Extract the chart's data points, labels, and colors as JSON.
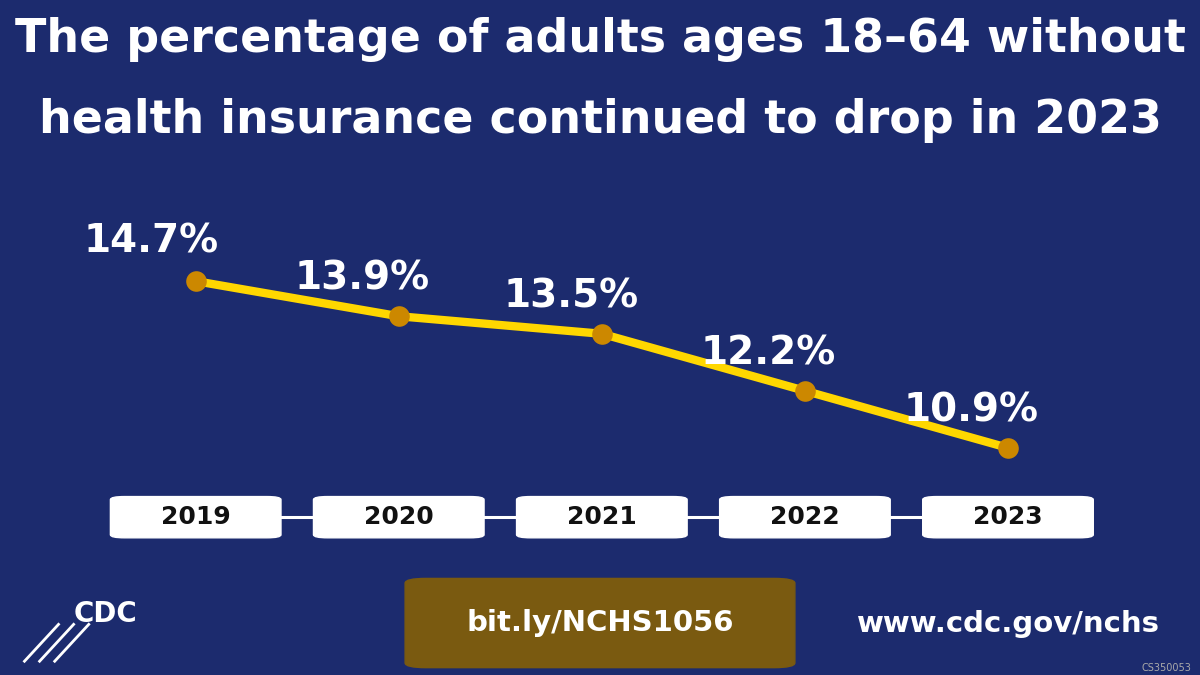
{
  "years": [
    2019,
    2020,
    2021,
    2022,
    2023
  ],
  "values": [
    14.7,
    13.9,
    13.5,
    12.2,
    10.9
  ],
  "labels": [
    "14.7%",
    "13.9%",
    "13.5%",
    "12.2%",
    "10.9%"
  ],
  "title_line1": "The percentage of adults ages 18–64 without",
  "title_line2": "health insurance continued to drop in 2023",
  "line_color": "#FFD700",
  "marker_color": "#CC8800",
  "bg_color_main": "#1C2B6E",
  "bg_color_footer": "#1B7A68",
  "label_color": "#FFFFFF",
  "year_box_color": "#FFFFFF",
  "year_text_color": "#111111",
  "url_box_color": "#7A5A10",
  "url_text": "bit.ly/NCHS1056",
  "website_text": "www.cdc.gov/nchs",
  "footer_text_color": "#FFFFFF",
  "small_text": "CS350053",
  "cdc_blue": "#1A50A8"
}
